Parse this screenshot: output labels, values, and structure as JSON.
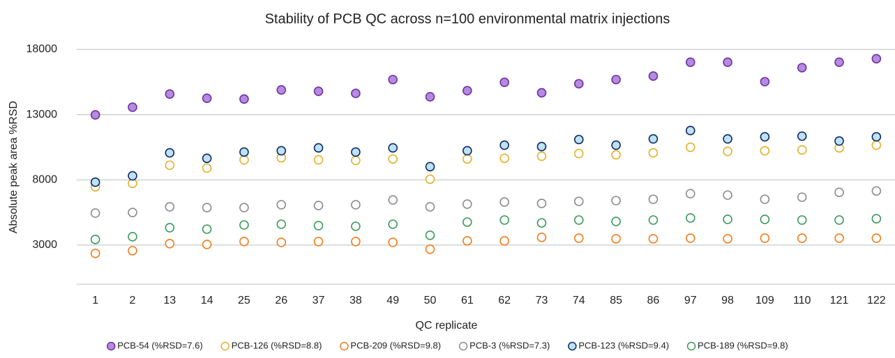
{
  "chart_data": {
    "type": "scatter",
    "title": "Stability of PCB QC across n=100 environmental matrix injections",
    "x_label": "QC replicate",
    "y_label": "Absolute peak area %RSD",
    "categories": [
      "1",
      "2",
      "13",
      "14",
      "25",
      "26",
      "37",
      "38",
      "49",
      "50",
      "61",
      "62",
      "73",
      "74",
      "85",
      "86",
      "97",
      "98",
      "109",
      "110",
      "121",
      "122"
    ],
    "ylim": [
      0,
      18000
    ],
    "yticks": [
      3000,
      8000,
      13000,
      18000
    ],
    "grid": true,
    "legend": "bottom",
    "series": [
      {
        "name": "PCB-54 (%RSD=7.6)",
        "color": "#7030a0",
        "fill": "#b48be0",
        "values": [
          12980,
          13570,
          14580,
          14260,
          14200,
          14900,
          14790,
          14630,
          15690,
          14370,
          14840,
          15480,
          14680,
          15370,
          15690,
          15960,
          17020,
          17020,
          15530,
          16600,
          17020,
          17290
        ]
      },
      {
        "name": "PCB-126 (%RSD=8.8)",
        "color": "#e4b02a",
        "fill": "#ffffff",
        "values": [
          7470,
          7730,
          9120,
          8900,
          9540,
          9700,
          9540,
          9490,
          9600,
          8050,
          9600,
          9650,
          9810,
          10020,
          9920,
          10070,
          10500,
          10180,
          10230,
          10290,
          10450,
          10660
        ]
      },
      {
        "name": "PCB-209 (%RSD=9.8)",
        "color": "#ef7d1b",
        "fill": "#ffffff",
        "values": [
          2360,
          2570,
          3110,
          3050,
          3270,
          3210,
          3270,
          3270,
          3210,
          2680,
          3320,
          3320,
          3590,
          3530,
          3480,
          3480,
          3530,
          3480,
          3530,
          3530,
          3530,
          3530
        ]
      },
      {
        "name": "PCB-3 (%RSD=7.3)",
        "color": "#8c8c8c",
        "fill": "#ffffff",
        "values": [
          5450,
          5500,
          5930,
          5870,
          5870,
          6090,
          6030,
          6090,
          6460,
          5930,
          6140,
          6300,
          6190,
          6350,
          6410,
          6510,
          6940,
          6830,
          6510,
          6670,
          7040,
          7150
        ]
      },
      {
        "name": "PCB-123 (%RSD=9.4)",
        "color": "#0d2a60",
        "fill": "#bfe1f5",
        "values": [
          7820,
          8310,
          10070,
          9650,
          10130,
          10230,
          10450,
          10130,
          10450,
          9010,
          10230,
          10660,
          10550,
          11090,
          10660,
          11140,
          11780,
          11140,
          11300,
          11350,
          10980,
          11300
        ]
      },
      {
        "name": "PCB-189 (%RSD=9.8)",
        "color": "#3a9a5b",
        "fill": "#ffffff",
        "values": [
          3430,
          3640,
          4330,
          4220,
          4540,
          4600,
          4490,
          4440,
          4600,
          3750,
          4760,
          4920,
          4700,
          4920,
          4810,
          4920,
          5080,
          4970,
          4970,
          4920,
          4920,
          5020
        ]
      }
    ]
  }
}
